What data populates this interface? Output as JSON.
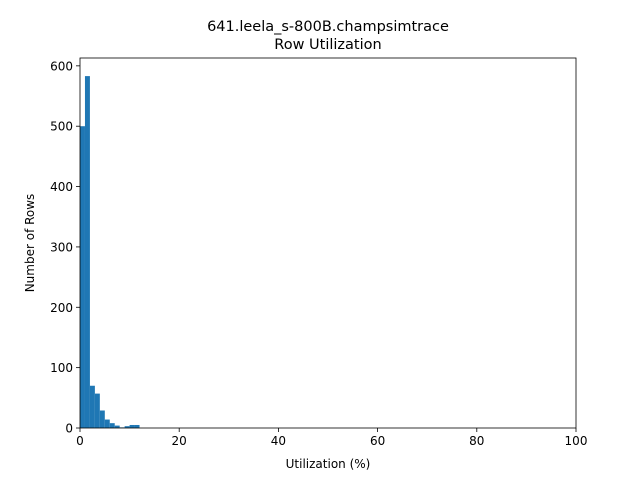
{
  "chart_data": {
    "type": "bar",
    "title": "641.leela_s-800B.champsimtrace",
    "subtitle": "Row Utilization",
    "xlabel": "Utilization (%)",
    "ylabel": "Number of Rows",
    "xlim": [
      0,
      100
    ],
    "ylim": [
      0,
      613
    ],
    "xticks": [
      0,
      20,
      40,
      60,
      80,
      100
    ],
    "yticks": [
      0,
      100,
      200,
      300,
      400,
      500,
      600
    ],
    "grid": false,
    "legend": "none",
    "bar_color": "#1f77b4",
    "bin_width": 1,
    "series": [
      {
        "x": [
          0,
          1,
          2,
          3,
          4,
          5,
          6,
          7,
          8,
          9,
          10,
          11
        ],
        "values": [
          500,
          583,
          70,
          57,
          29,
          14,
          8,
          4,
          1,
          3,
          5,
          5
        ]
      }
    ]
  }
}
